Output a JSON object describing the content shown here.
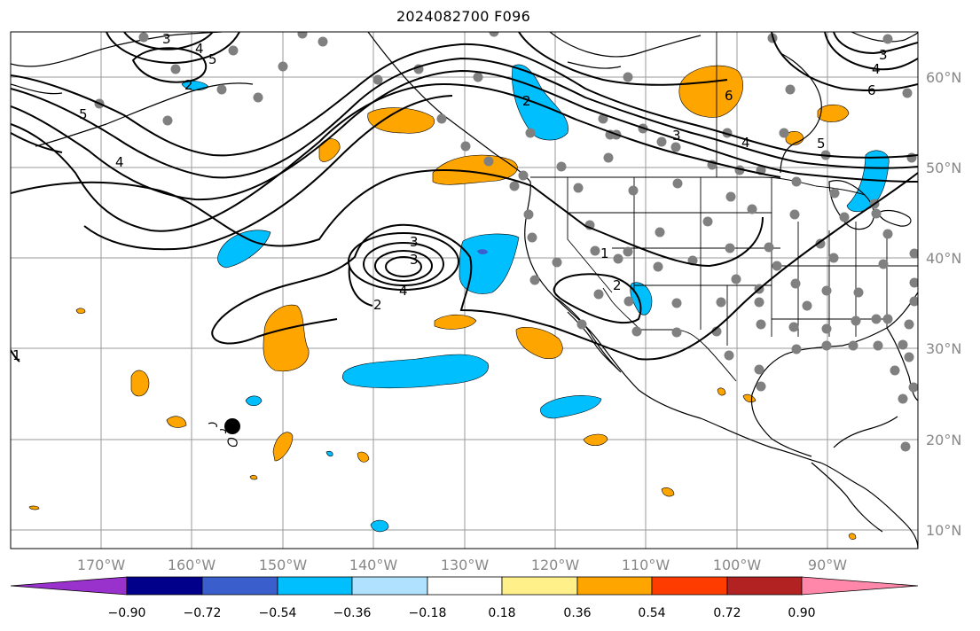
{
  "title": "2024082700 F096",
  "map": {
    "lon_labels": [
      "170°W",
      "160°W",
      "150°W",
      "140°W",
      "130°W",
      "120°W",
      "110°W",
      "100°W",
      "90°W"
    ],
    "lat_labels": [
      "60°N",
      "50°N",
      "40°N",
      "30°N",
      "20°N",
      "10°N"
    ],
    "contour_labels": [
      "1",
      "2",
      "3",
      "4",
      "5",
      "6"
    ],
    "grid": true
  },
  "colorbar": {
    "ticks": [
      "−0.90",
      "−0.72",
      "−0.54",
      "−0.36",
      "−0.18",
      "0.18",
      "0.36",
      "0.54",
      "0.72",
      "0.90"
    ],
    "colors": [
      "#9932cc",
      "#00008b",
      "#3a5fcd",
      "#00bfff",
      "#b0e2ff",
      "#ffffff",
      "#fff08a",
      "#ffa500",
      "#ff3c00",
      "#b22222",
      "#ff88aa"
    ],
    "extend": "both"
  }
}
